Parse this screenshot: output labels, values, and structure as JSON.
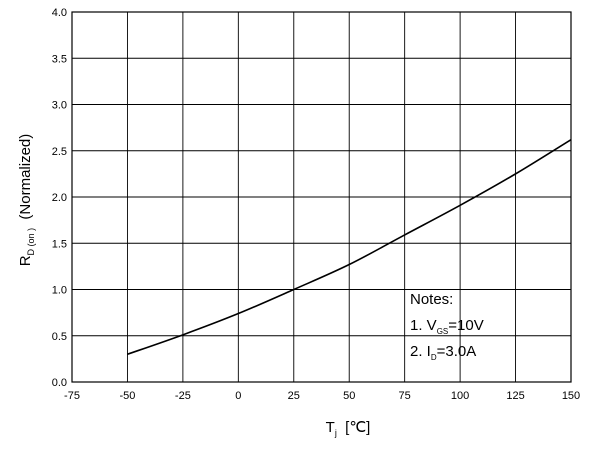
{
  "chart_data": {
    "type": "line",
    "xlabel": {
      "main": "T",
      "sub": "j",
      "unit": "[℃]"
    },
    "ylabel": {
      "main": "R",
      "sub": "D (on )",
      "rest": "(Normalized)"
    },
    "xlim": [
      -75,
      150
    ],
    "ylim": [
      0.0,
      4.0
    ],
    "x_ticks": [
      -75,
      -50,
      -25,
      0,
      25,
      50,
      75,
      100,
      125,
      150
    ],
    "x_tick_labels": [
      "-75",
      "-50",
      "-25",
      "0",
      "25",
      "50",
      "75",
      "100",
      "125",
      "150"
    ],
    "y_ticks": [
      0.0,
      0.5,
      1.0,
      1.5,
      2.0,
      2.5,
      3.0,
      3.5,
      4.0
    ],
    "y_tick_labels": [
      "0.0",
      "0.5",
      "1.0",
      "1.5",
      "2.0",
      "2.5",
      "3.0",
      "3.5",
      "4.0"
    ],
    "grid": true,
    "series": [
      {
        "x": [
          -50,
          -25,
          0,
          25,
          50,
          75,
          100,
          125,
          150
        ],
        "y": [
          0.3,
          0.51,
          0.74,
          1.0,
          1.27,
          1.59,
          1.91,
          2.25,
          2.62
        ]
      }
    ],
    "annotations": {
      "title": "Notes:",
      "lines": [
        {
          "prefix": "1. V",
          "sub": "GS",
          "suffix": "=10V"
        },
        {
          "prefix": "2. I",
          "sub": "D",
          "suffix": "=3.0A"
        }
      ]
    },
    "colors": {
      "line": "#000000",
      "grid": "#000000",
      "axes": "#000000"
    }
  }
}
